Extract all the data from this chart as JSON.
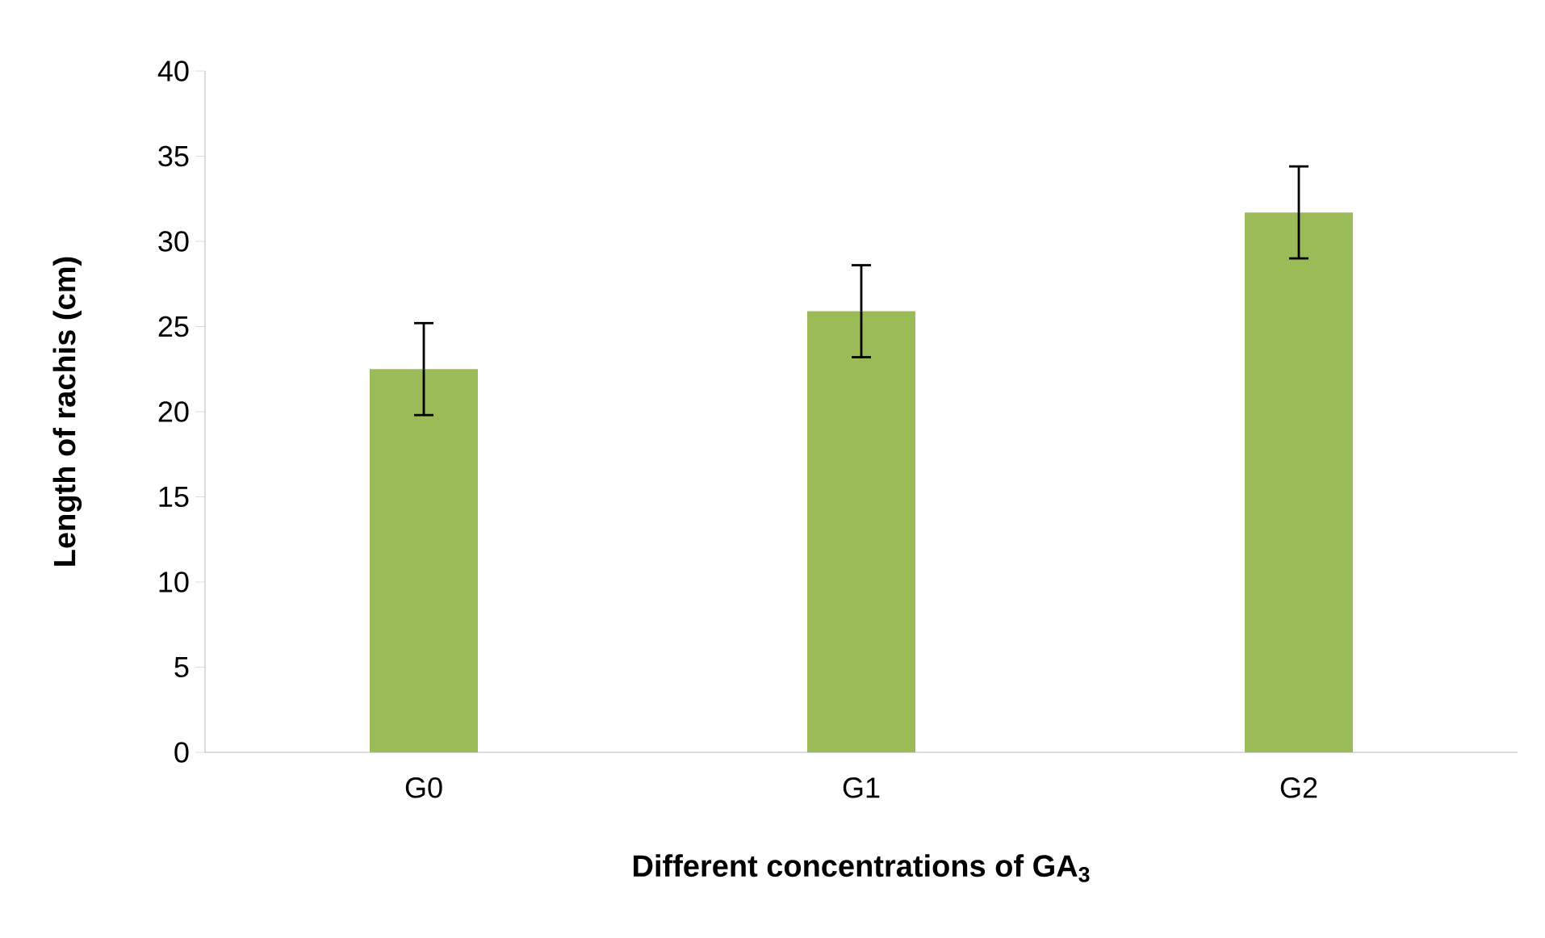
{
  "chart_data": {
    "type": "bar",
    "xlabel": "Different concentrations of GA$_{3}$",
    "ylabel": "Length of rachis (cm)",
    "categories": [
      "G0",
      "G1",
      "G2"
    ],
    "values": [
      22.5,
      25.9,
      31.7
    ],
    "errors": [
      2.7,
      2.7,
      2.7
    ],
    "color": "#9bbb59",
    "ylim": [
      0,
      40
    ],
    "yticks": [
      0,
      5,
      10,
      15,
      20,
      25,
      30,
      35,
      40
    ],
    "grid": false
  }
}
